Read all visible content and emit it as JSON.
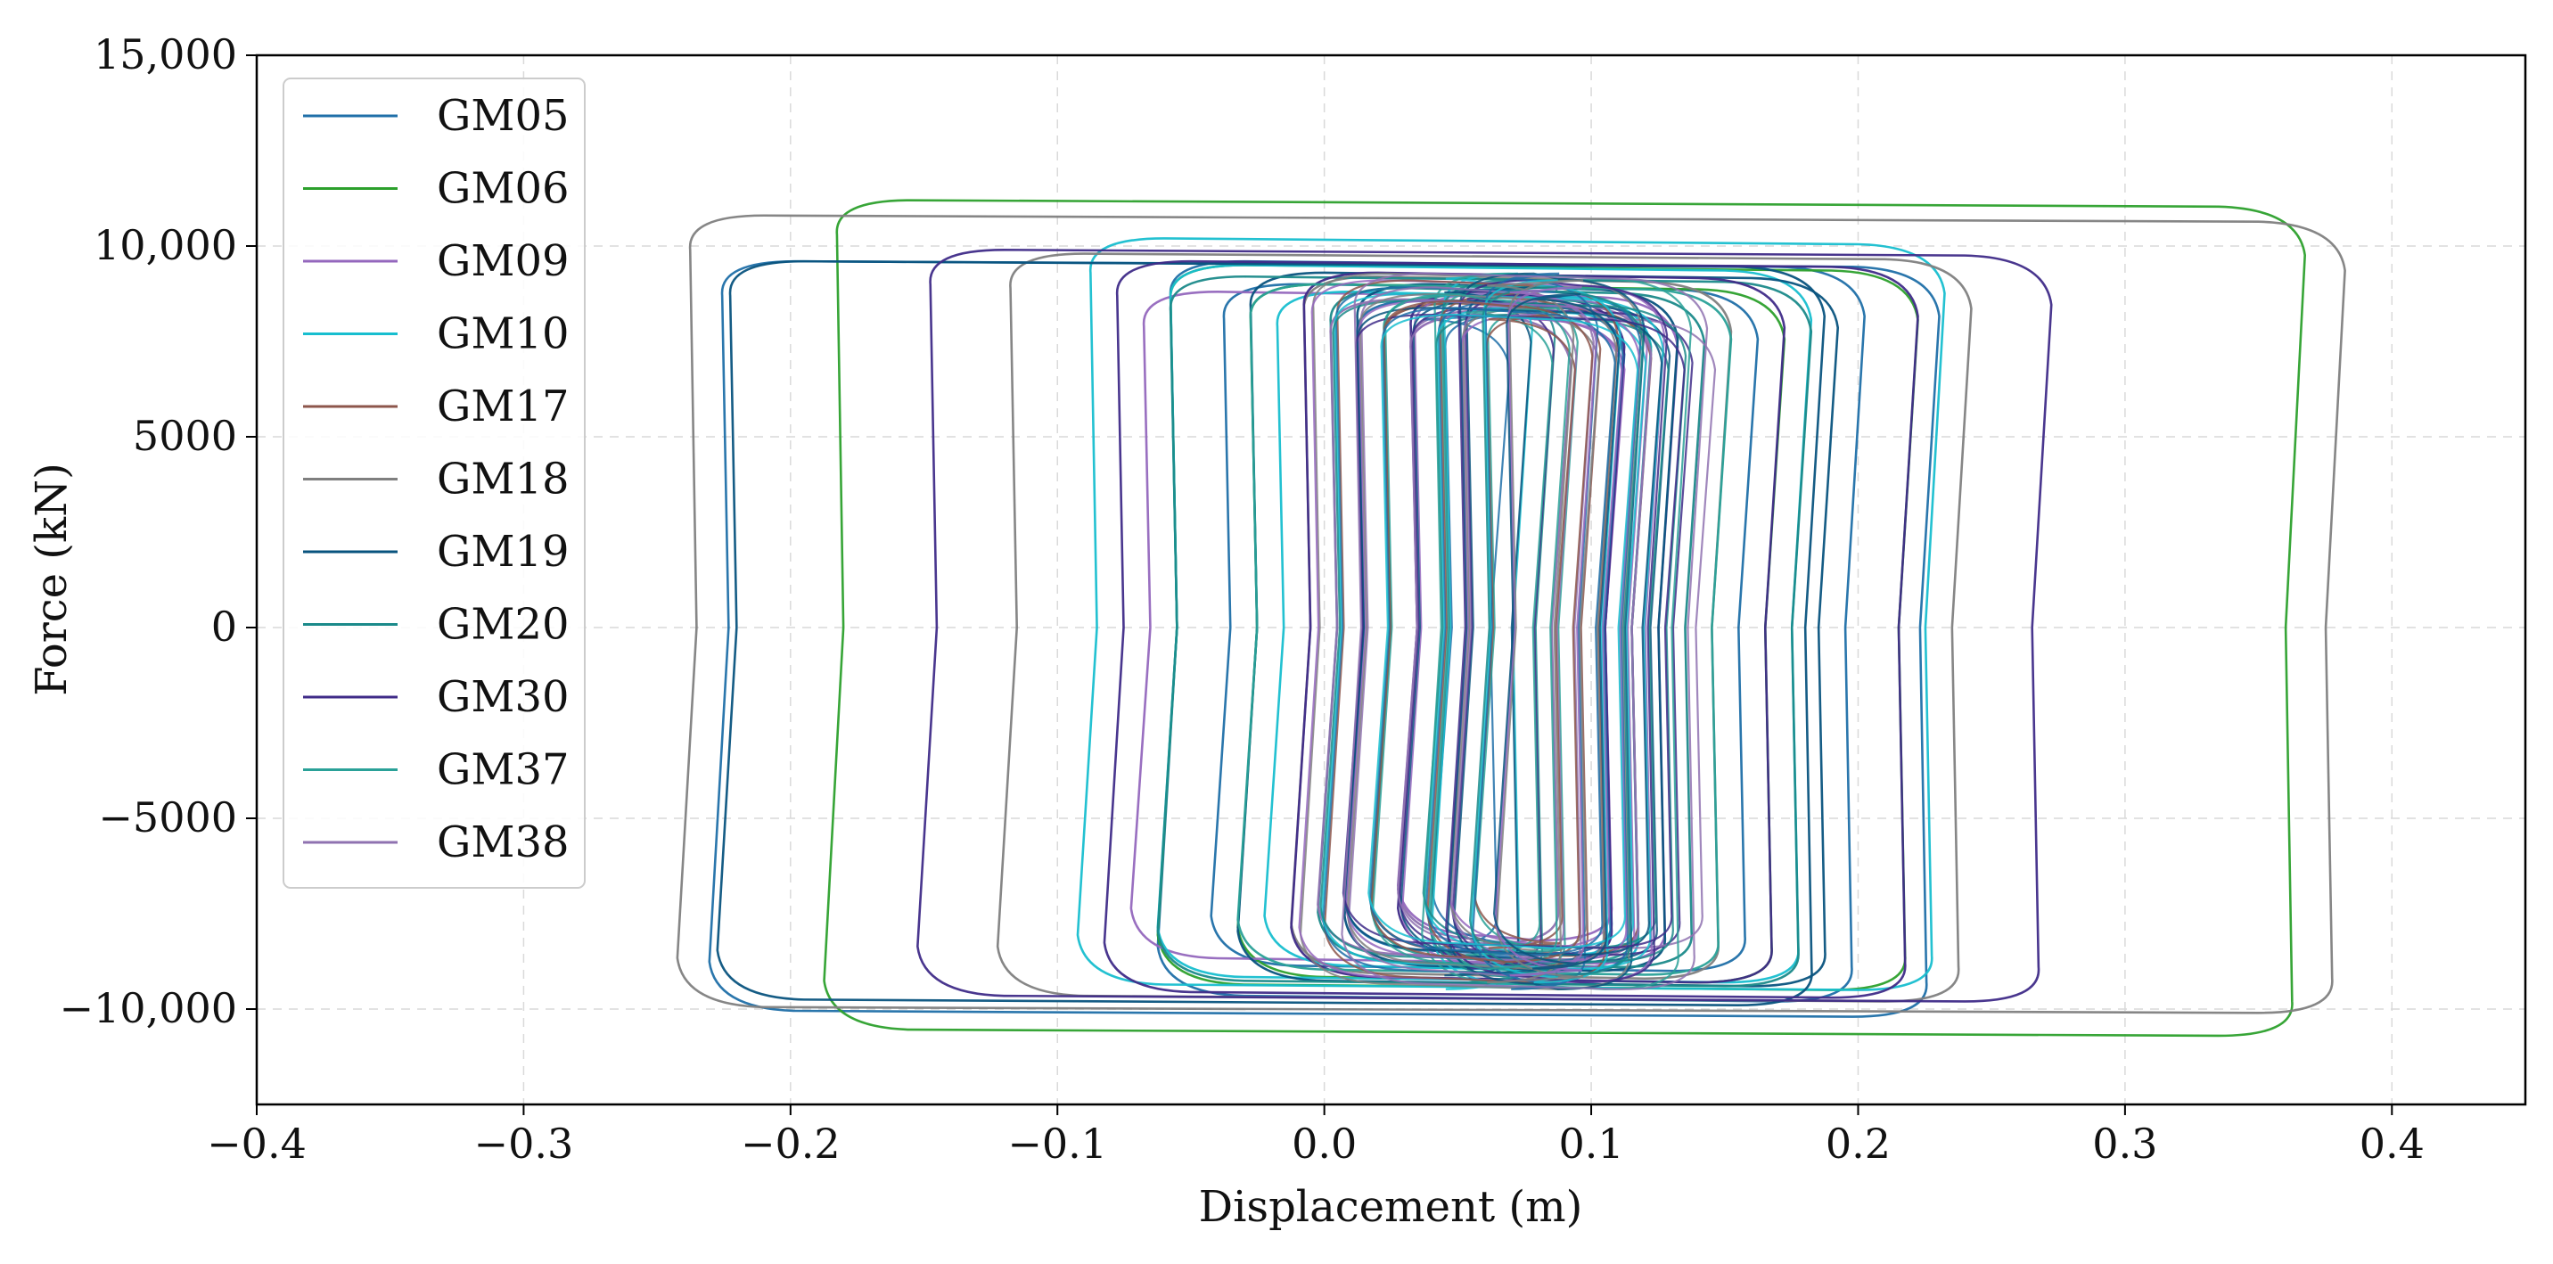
{
  "chart_data": {
    "type": "line",
    "title": "",
    "xlabel": "Displacement (m)",
    "ylabel": "Force (kN)",
    "xlim": [
      -0.4,
      0.45
    ],
    "ylim": [
      -12500,
      15000
    ],
    "xticks": [
      -0.4,
      -0.3,
      -0.2,
      -0.1,
      0.0,
      0.1,
      0.2,
      0.3,
      0.4
    ],
    "xtick_labels": [
      "−0.4",
      "−0.3",
      "−0.2",
      "−0.1",
      "0.0",
      "0.1",
      "0.2",
      "0.3",
      "0.4"
    ],
    "yticks": [
      -10000,
      -5000,
      0,
      5000,
      10000,
      15000
    ],
    "ytick_labels": [
      "−10,000",
      "−5000",
      "0",
      "5000",
      "10,000",
      "15,000"
    ],
    "grid": true,
    "legend_position": "top-left",
    "series": [
      {
        "name": "GM05",
        "color": "#1f6fa8",
        "loops": [
          {
            "center": 0.06,
            "half_width": 0.1,
            "ytop": 9000,
            "ybot": -9000
          },
          {
            "center": 0.07,
            "half_width": 0.13,
            "ytop": 9600,
            "ybot": -9800
          },
          {
            "center": 0.0,
            "half_width": 0.228,
            "ytop": 9600,
            "ybot": -10200
          },
          {
            "center": 0.06,
            "half_width": 0.05,
            "ytop": 8600,
            "ybot": -8600
          }
        ]
      },
      {
        "name": "GM06",
        "color": "#2ca02c",
        "loops": [
          {
            "center": 0.09,
            "half_width": 0.275,
            "ytop": 11200,
            "ybot": -10700
          },
          {
            "center": 0.08,
            "half_width": 0.14,
            "ytop": 9500,
            "ybot": -9500
          },
          {
            "center": 0.07,
            "half_width": 0.1,
            "ytop": 9000,
            "ybot": -9300
          }
        ]
      },
      {
        "name": "GM09",
        "color": "#9467bd",
        "loops": [
          {
            "center": 0.03,
            "half_width": 0.1,
            "ytop": 8800,
            "ybot": -8800
          },
          {
            "center": 0.07,
            "half_width": 0.04,
            "ytop": 8200,
            "ybot": -8200
          }
        ]
      },
      {
        "name": "GM10",
        "color": "#17becf",
        "loops": [
          {
            "center": 0.07,
            "half_width": 0.16,
            "ytop": 10200,
            "ybot": -9500
          },
          {
            "center": 0.06,
            "half_width": 0.12,
            "ytop": 9500,
            "ybot": -9300
          },
          {
            "center": 0.05,
            "half_width": 0.07,
            "ytop": 8800,
            "ybot": -9000
          }
        ]
      },
      {
        "name": "GM17",
        "color": "#8c564b",
        "loops": [
          {
            "center": 0.07,
            "half_width": 0.05,
            "ytop": 8500,
            "ybot": -8600
          }
        ]
      },
      {
        "name": "GM18",
        "color": "#7f7f7f",
        "loops": [
          {
            "center": 0.07,
            "half_width": 0.31,
            "ytop": 10800,
            "ybot": -10100
          },
          {
            "center": 0.06,
            "half_width": 0.18,
            "ytop": 9800,
            "ybot": -9800
          },
          {
            "center": 0.07,
            "half_width": 0.08,
            "ytop": 9200,
            "ybot": -9200
          }
        ]
      },
      {
        "name": "GM19",
        "color": "#08537e",
        "loops": [
          {
            "center": -0.02,
            "half_width": 0.205,
            "ytop": 9600,
            "ybot": -9900
          },
          {
            "center": 0.08,
            "half_width": 0.11,
            "ytop": 9300,
            "ybot": -9400
          },
          {
            "center": 0.07,
            "half_width": 0.06,
            "ytop": 9000,
            "ybot": -9000
          }
        ]
      },
      {
        "name": "GM20",
        "color": "#1b8a8a",
        "loops": [
          {
            "center": 0.06,
            "half_width": 0.12,
            "ytop": 9200,
            "ybot": -9400
          },
          {
            "center": 0.07,
            "half_width": 0.07,
            "ytop": 8900,
            "ybot": -8900
          }
        ]
      },
      {
        "name": "GM30",
        "color": "#3f2b88",
        "loops": [
          {
            "center": 0.06,
            "half_width": 0.21,
            "ytop": 9900,
            "ybot": -9800
          },
          {
            "center": 0.07,
            "half_width": 0.15,
            "ytop": 9600,
            "ybot": -9700
          },
          {
            "center": 0.08,
            "half_width": 0.09,
            "ytop": 9300,
            "ybot": -9300
          },
          {
            "center": 0.07,
            "half_width": 0.04,
            "ytop": 8800,
            "ybot": -8800
          }
        ]
      },
      {
        "name": "GM37",
        "color": "#2aa198",
        "loops": [
          {
            "center": 0.06,
            "half_width": 0.09,
            "ytop": 9000,
            "ybot": -9100
          },
          {
            "center": 0.07,
            "half_width": 0.05,
            "ytop": 8700,
            "ybot": -8800
          }
        ]
      },
      {
        "name": "GM38",
        "color": "#8f72b0",
        "loops": [
          {
            "center": 0.06,
            "half_width": 0.03,
            "ytop": 8300,
            "ybot": -8300
          },
          {
            "center": 0.06,
            "half_width": 0.06,
            "ytop": 8600,
            "ybot": -8700
          }
        ]
      }
    ]
  }
}
